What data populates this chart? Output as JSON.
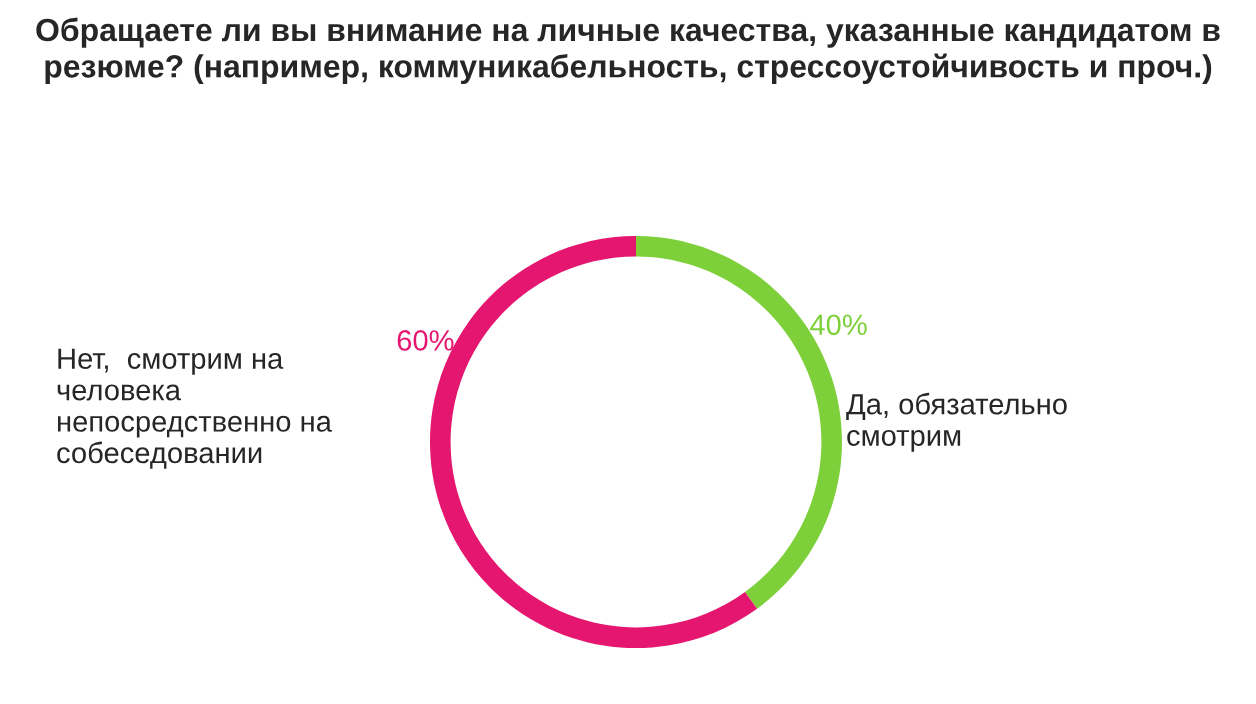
{
  "chart_data": {
    "type": "donut",
    "title": "Обращаете ли вы внимание на личные качества, указанные кандидатом в резюме? (например, коммуникабельность, стрессоустойчивость и проч.)",
    "categories": [
      "Да, обязательно смотрим",
      "Нет,  смотрим на человека непосредственно на собеседовании"
    ],
    "values": [
      40,
      60
    ],
    "colors": [
      "#7ed03b",
      "#e5166f"
    ],
    "value_labels": [
      "40%",
      "60%"
    ],
    "legend": false
  }
}
